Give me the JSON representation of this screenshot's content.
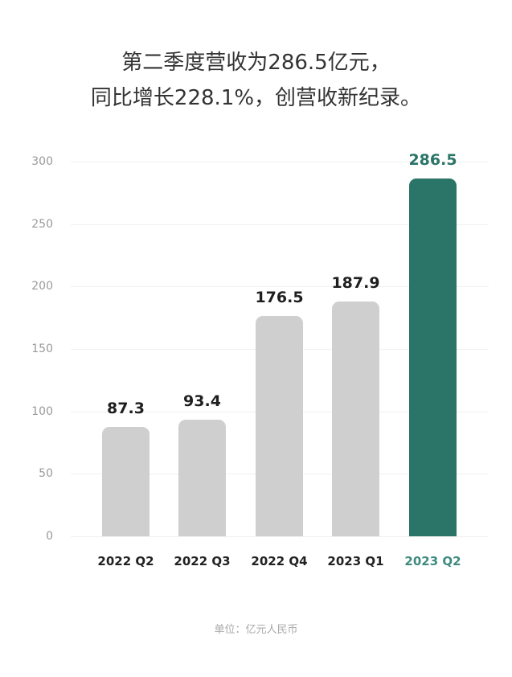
{
  "header": {
    "line1": "第二季度营收为286.5亿元，",
    "line2": "同比增长228.1%，创营收新纪录。"
  },
  "footer": {
    "unit": "单位：亿元人民币"
  },
  "colors": {
    "bar_default": "#cfcfcf",
    "bar_highlight": "#2b7468",
    "label_highlight": "#3f8a7e",
    "grid": "#f1f1f1",
    "tick": "#9a9a9a"
  },
  "chart_data": {
    "type": "bar",
    "title": "第二季度营收为286.5亿元，同比增长228.1%，创营收新纪录。",
    "xlabel": "",
    "ylabel": "",
    "unit_note": "单位：亿元人民币",
    "categories": [
      "2022 Q2",
      "2022 Q3",
      "2022 Q4",
      "2023 Q1",
      "2023 Q2"
    ],
    "values": [
      87.3,
      93.4,
      176.5,
      187.9,
      286.5
    ],
    "value_labels": [
      "87.3",
      "93.4",
      "176.5",
      "187.9",
      "286.5"
    ],
    "highlight_index": 4,
    "ylim": [
      0,
      300
    ],
    "yticks": [
      "0",
      "50",
      "100",
      "150",
      "200",
      "250",
      "300"
    ],
    "grid": true,
    "legend": null
  }
}
